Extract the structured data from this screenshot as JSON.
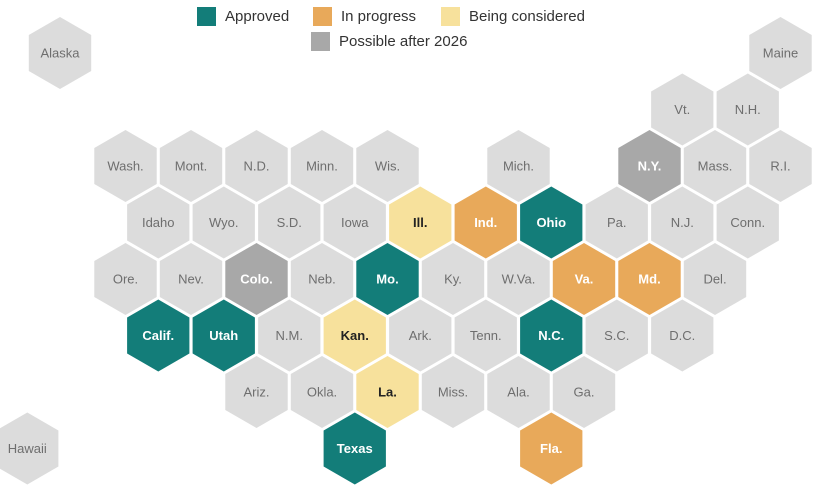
{
  "colors": {
    "approved": "#137d79",
    "in_progress": "#e8a95a",
    "being_considered": "#f7e19c",
    "possible_after_2026": "#a8a8a8",
    "none": "#dcdcdc",
    "label_light": "#ffffff",
    "label_dark": "#222222",
    "label_muted": "#6e6e6e"
  },
  "legend": [
    {
      "key": "approved",
      "label": "Approved"
    },
    {
      "key": "in_progress",
      "label": "In progress"
    },
    {
      "key": "being_considered",
      "label": "Being considered"
    },
    {
      "key": "possible_after_2026",
      "label": "Possible after 2026"
    }
  ],
  "states": [
    {
      "label": "Alaska",
      "row": 0,
      "col": 0,
      "status": "none"
    },
    {
      "label": "Maine",
      "row": 0,
      "col": 11,
      "status": "none"
    },
    {
      "label": "Vt.",
      "row": 1,
      "col": 9.5,
      "status": "none"
    },
    {
      "label": "N.H.",
      "row": 1,
      "col": 10.5,
      "status": "none"
    },
    {
      "label": "Wash.",
      "row": 2,
      "col": 1,
      "status": "none"
    },
    {
      "label": "Mont.",
      "row": 2,
      "col": 2,
      "status": "none"
    },
    {
      "label": "N.D.",
      "row": 2,
      "col": 3,
      "status": "none"
    },
    {
      "label": "Minn.",
      "row": 2,
      "col": 4,
      "status": "none"
    },
    {
      "label": "Wis.",
      "row": 2,
      "col": 5,
      "status": "none"
    },
    {
      "label": "Mich.",
      "row": 2,
      "col": 7,
      "status": "none"
    },
    {
      "label": "N.Y.",
      "row": 2,
      "col": 9,
      "status": "possible_after_2026"
    },
    {
      "label": "Mass.",
      "row": 2,
      "col": 10,
      "status": "none"
    },
    {
      "label": "R.I.",
      "row": 2,
      "col": 11,
      "status": "none"
    },
    {
      "label": "Idaho",
      "row": 3,
      "col": 1.5,
      "status": "none"
    },
    {
      "label": "Wyo.",
      "row": 3,
      "col": 2.5,
      "status": "none"
    },
    {
      "label": "S.D.",
      "row": 3,
      "col": 3.5,
      "status": "none"
    },
    {
      "label": "Iowa",
      "row": 3,
      "col": 4.5,
      "status": "none"
    },
    {
      "label": "Ill.",
      "row": 3,
      "col": 5.5,
      "status": "being_considered"
    },
    {
      "label": "Ind.",
      "row": 3,
      "col": 6.5,
      "status": "in_progress"
    },
    {
      "label": "Ohio",
      "row": 3,
      "col": 7.5,
      "status": "approved"
    },
    {
      "label": "Pa.",
      "row": 3,
      "col": 8.5,
      "status": "none"
    },
    {
      "label": "N.J.",
      "row": 3,
      "col": 9.5,
      "status": "none"
    },
    {
      "label": "Conn.",
      "row": 3,
      "col": 10.5,
      "status": "none"
    },
    {
      "label": "Ore.",
      "row": 4,
      "col": 1,
      "status": "none"
    },
    {
      "label": "Nev.",
      "row": 4,
      "col": 2,
      "status": "none"
    },
    {
      "label": "Colo.",
      "row": 4,
      "col": 3,
      "status": "possible_after_2026"
    },
    {
      "label": "Neb.",
      "row": 4,
      "col": 4,
      "status": "none"
    },
    {
      "label": "Mo.",
      "row": 4,
      "col": 5,
      "status": "approved"
    },
    {
      "label": "Ky.",
      "row": 4,
      "col": 6,
      "status": "none"
    },
    {
      "label": "W.Va.",
      "row": 4,
      "col": 7,
      "status": "none"
    },
    {
      "label": "Va.",
      "row": 4,
      "col": 8,
      "status": "in_progress"
    },
    {
      "label": "Md.",
      "row": 4,
      "col": 9,
      "status": "in_progress"
    },
    {
      "label": "Del.",
      "row": 4,
      "col": 10,
      "status": "none"
    },
    {
      "label": "Calif.",
      "row": 5,
      "col": 1.5,
      "status": "approved"
    },
    {
      "label": "Utah",
      "row": 5,
      "col": 2.5,
      "status": "approved"
    },
    {
      "label": "N.M.",
      "row": 5,
      "col": 3.5,
      "status": "none"
    },
    {
      "label": "Kan.",
      "row": 5,
      "col": 4.5,
      "status": "being_considered"
    },
    {
      "label": "Ark.",
      "row": 5,
      "col": 5.5,
      "status": "none"
    },
    {
      "label": "Tenn.",
      "row": 5,
      "col": 6.5,
      "status": "none"
    },
    {
      "label": "N.C.",
      "row": 5,
      "col": 7.5,
      "status": "approved"
    },
    {
      "label": "S.C.",
      "row": 5,
      "col": 8.5,
      "status": "none"
    },
    {
      "label": "D.C.",
      "row": 5,
      "col": 9.5,
      "status": "none"
    },
    {
      "label": "Ariz.",
      "row": 6,
      "col": 3,
      "status": "none"
    },
    {
      "label": "Okla.",
      "row": 6,
      "col": 4,
      "status": "none"
    },
    {
      "label": "La.",
      "row": 6,
      "col": 5,
      "status": "being_considered"
    },
    {
      "label": "Miss.",
      "row": 6,
      "col": 6,
      "status": "none"
    },
    {
      "label": "Ala.",
      "row": 6,
      "col": 7,
      "status": "none"
    },
    {
      "label": "Ga.",
      "row": 6,
      "col": 8,
      "status": "none"
    },
    {
      "label": "Hawaii",
      "row": 7,
      "col": -0.5,
      "status": "none"
    },
    {
      "label": "Texas",
      "row": 7,
      "col": 4.5,
      "status": "approved"
    },
    {
      "label": "Fla.",
      "row": 7,
      "col": 7.5,
      "status": "in_progress"
    }
  ]
}
